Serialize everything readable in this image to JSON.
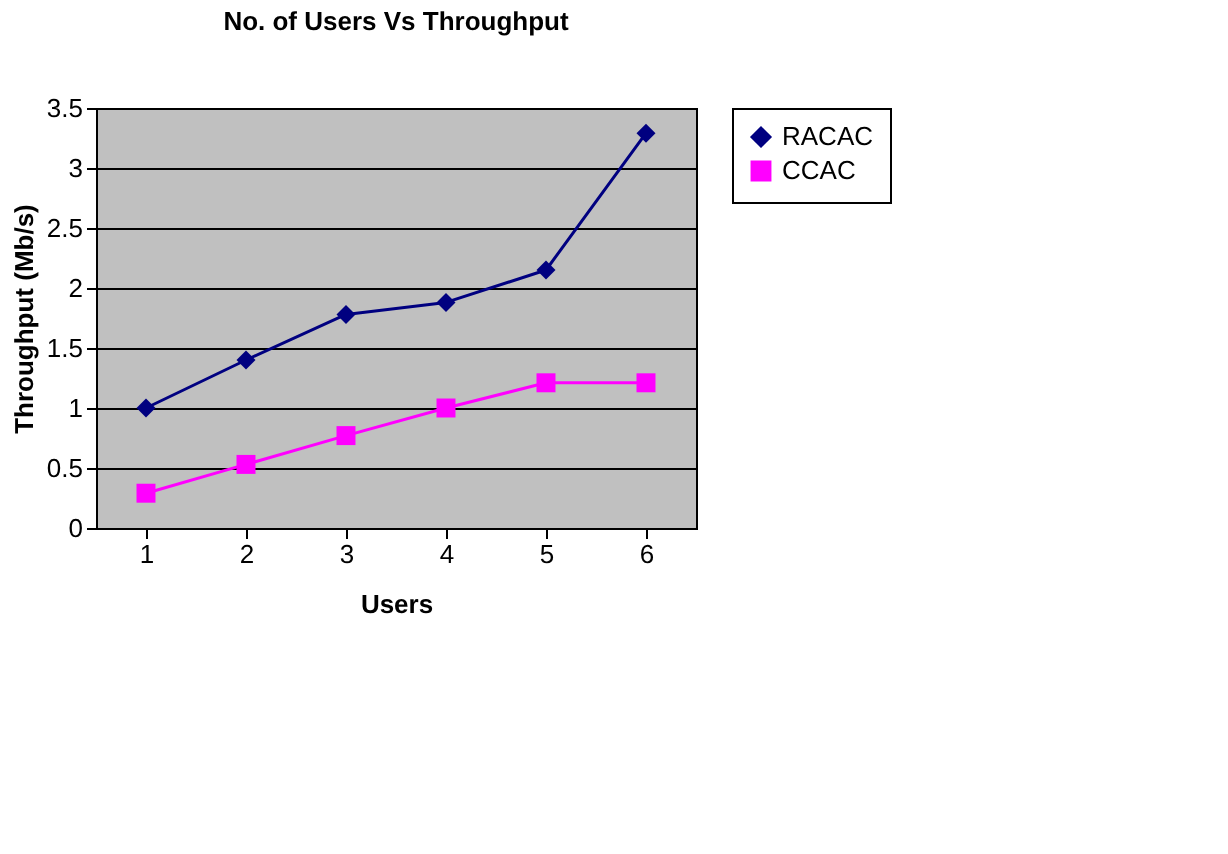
{
  "chart_data": {
    "type": "line",
    "title": "No. of Users Vs Throughput",
    "xlabel": "Users",
    "ylabel": "Throughput (Mb/s)",
    "categories": [
      "1",
      "2",
      "3",
      "4",
      "5",
      "6"
    ],
    "series": [
      {
        "name": "RACAC",
        "color": "#000080",
        "marker": "diamond",
        "values": [
          1.0,
          1.4,
          1.78,
          1.88,
          2.15,
          3.29
        ]
      },
      {
        "name": "CCAC",
        "color": "#ff00ff",
        "marker": "square",
        "values": [
          0.29,
          0.53,
          0.77,
          1.0,
          1.21,
          1.21
        ]
      }
    ],
    "ylim": [
      0,
      3.5
    ],
    "yticks": [
      0,
      0.5,
      1,
      1.5,
      2,
      2.5,
      3,
      3.5
    ],
    "grid": "y",
    "legend": "right"
  }
}
